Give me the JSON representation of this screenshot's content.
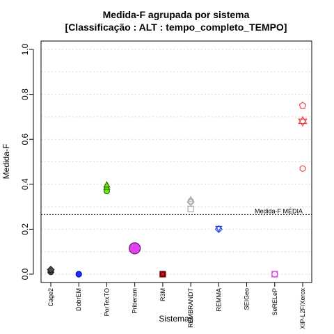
{
  "chart_data": {
    "type": "scatter",
    "title": "Medida-F agrupada por sistema",
    "subtitle": "[Classificação : ALT : tempo_completo_TEMPO]",
    "xlabel": "Sistemas",
    "ylabel": "Medida-F",
    "ylim": [
      0,
      1
    ],
    "yticks": [
      "0.0",
      "0.2",
      "0.4",
      "0.6",
      "0.8",
      "1.0"
    ],
    "grid": "horizontal dotted",
    "categories": [
      "Cage2",
      "DobrEM",
      "PorTexTO",
      "Priberam",
      "R3M",
      "REMBRANDT",
      "REMMA",
      "SEIGeo",
      "SeRELeP",
      "XIP-L2F/Xerox"
    ],
    "reference_line": {
      "label": "Medida-F MÉDIA",
      "value": 0.265
    },
    "points": [
      {
        "system": "Cage2",
        "value": 0.01,
        "shape": "circle",
        "fill": "#4d4d4d",
        "stroke": "#222222",
        "r": 4
      },
      {
        "system": "Cage2",
        "value": 0.015,
        "shape": "triangle",
        "fill": "#4d4d4d",
        "stroke": "#222222",
        "r": 4
      },
      {
        "system": "Cage2",
        "value": 0.02,
        "shape": "diamond",
        "fill": "#4d4d4d",
        "stroke": "#222222",
        "r": 4
      },
      {
        "system": "DobrEM",
        "value": 0.0,
        "shape": "circle",
        "fill": "#1a33ff",
        "stroke": "#0000aa",
        "r": 4
      },
      {
        "system": "PorTexTO",
        "value": 0.37,
        "shape": "circle",
        "fill": "#66ee11",
        "stroke": "#336600",
        "r": 4
      },
      {
        "system": "PorTexTO",
        "value": 0.385,
        "shape": "triangle",
        "fill": "#66ee11",
        "stroke": "#336600",
        "r": 4
      },
      {
        "system": "PorTexTO",
        "value": 0.395,
        "shape": "triangle",
        "fill": "#66ee11",
        "stroke": "#336600",
        "r": 4
      },
      {
        "system": "Priberam",
        "value": 0.115,
        "shape": "circle",
        "fill": "#dd44ee",
        "stroke": "#661177",
        "r": 8
      },
      {
        "system": "R3M",
        "value": 0.0,
        "shape": "square",
        "fill": "#dd1111",
        "stroke": "#660000",
        "r": 4
      },
      {
        "system": "R3M",
        "value": 0.0,
        "shape": "circle",
        "fill": "#dd1111",
        "stroke": "#660000",
        "r": 3
      },
      {
        "system": "REMBRANDT",
        "value": 0.32,
        "shape": "diamond",
        "fill": "none",
        "stroke": "#aaaaaa",
        "r": 4
      },
      {
        "system": "REMBRANDT",
        "value": 0.325,
        "shape": "circle",
        "fill": "none",
        "stroke": "#aaaaaa",
        "r": 4
      },
      {
        "system": "REMBRANDT",
        "value": 0.33,
        "shape": "triangle",
        "fill": "none",
        "stroke": "#aaaaaa",
        "r": 4
      },
      {
        "system": "REMBRANDT",
        "value": 0.29,
        "shape": "square",
        "fill": "none",
        "stroke": "#aaaaaa",
        "r": 4
      },
      {
        "system": "REMMA",
        "value": 0.2,
        "shape": "diamond",
        "fill": "none",
        "stroke": "#2244ee",
        "r": 4
      },
      {
        "system": "REMMA",
        "value": 0.205,
        "shape": "triangle-down",
        "fill": "none",
        "stroke": "#2244ee",
        "r": 4
      },
      {
        "system": "SeRELeP",
        "value": 0.0,
        "shape": "square",
        "fill": "none",
        "stroke": "#dd44ee",
        "r": 4
      },
      {
        "system": "SeRELeP",
        "value": 0.0,
        "shape": "circle",
        "fill": "none",
        "stroke": "#dd44ee",
        "r": 4
      },
      {
        "system": "XIP-L2F/Xerox",
        "value": 0.75,
        "shape": "pentagon",
        "fill": "none",
        "stroke": "#ee4444",
        "r": 4
      },
      {
        "system": "XIP-L2F/Xerox",
        "value": 0.68,
        "shape": "star-of-david",
        "fill": "none",
        "stroke": "#ee4444",
        "r": 5
      },
      {
        "system": "XIP-L2F/Xerox",
        "value": 0.47,
        "shape": "circle",
        "fill": "none",
        "stroke": "#ee4444",
        "r": 4
      }
    ]
  }
}
